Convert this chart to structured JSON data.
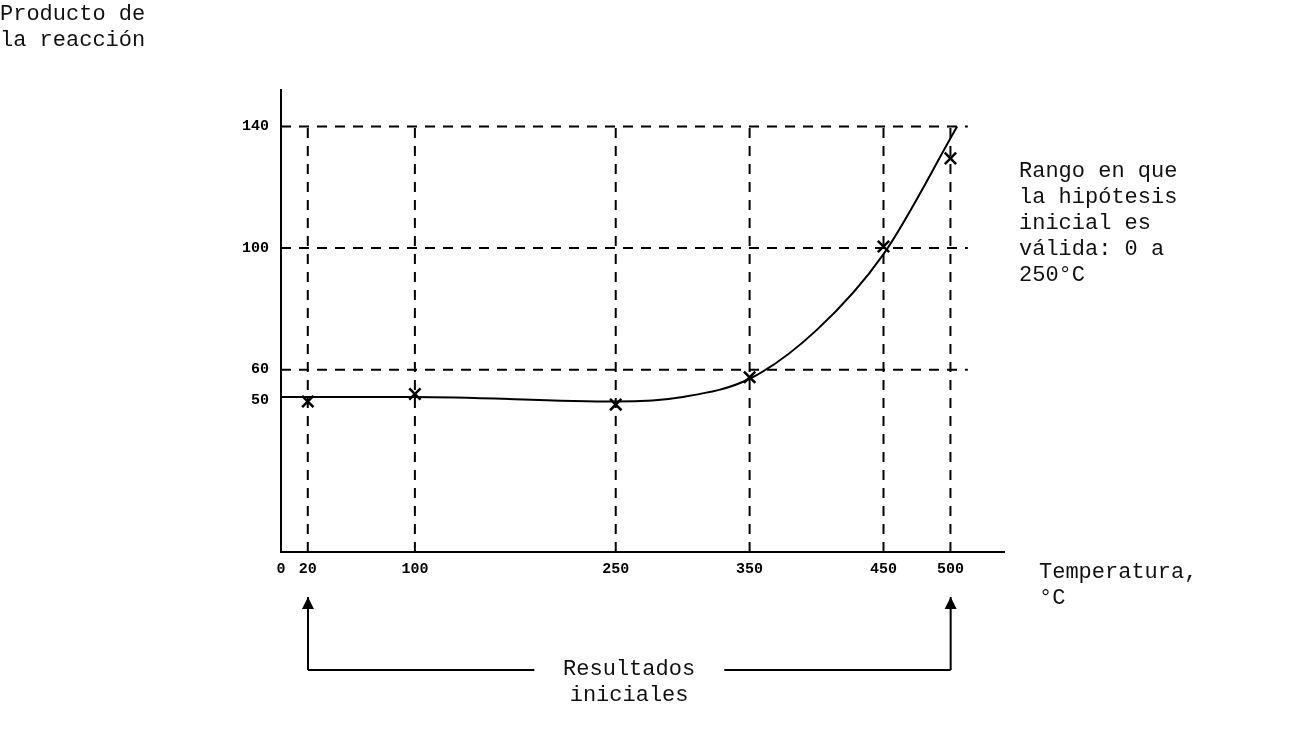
{
  "chart_data": {
    "type": "line",
    "ylabel": "Producto de la reacción",
    "xlabel": "Temperatura, °C",
    "xlim": [
      0,
      540
    ],
    "xticks": [
      0,
      20,
      100,
      250,
      350,
      450,
      500
    ],
    "ylim": [
      0,
      152
    ],
    "yticks": [
      50,
      60,
      100,
      140
    ],
    "grid": false,
    "legend": false,
    "marker": "cross",
    "series": [
      {
        "type": "scatter",
        "color": "#000000",
        "x": [
          20,
          100,
          250,
          350,
          450,
          500
        ],
        "values": [
          49.5,
          52,
          48.5,
          57.5,
          100.5,
          129.5
        ]
      },
      {
        "color": "#000000",
        "marker": "none",
        "x": [
          0,
          100,
          250,
          300,
          350,
          400,
          450,
          505
        ],
        "values": [
          51,
          51,
          49.5,
          51,
          57,
          73,
          98,
          140
        ]
      }
    ],
    "ref_lines": [
      {
        "axis": "y",
        "value": 60,
        "line_style": "dashed"
      },
      {
        "axis": "y",
        "value": 100,
        "line_style": "dashed"
      },
      {
        "axis": "y",
        "value": 140,
        "line_style": "dashed"
      },
      {
        "axis": "x",
        "value": 20,
        "line_style": "dashed"
      },
      {
        "axis": "x",
        "value": 100,
        "line_style": "dashed"
      },
      {
        "axis": "x",
        "value": 250,
        "line_style": "dashed"
      },
      {
        "axis": "x",
        "value": 350,
        "line_style": "dashed"
      },
      {
        "axis": "x",
        "value": 450,
        "line_style": "dashed"
      },
      {
        "axis": "x",
        "value": 500,
        "line_style": "dashed"
      }
    ],
    "annotations": [
      "Rango en que la hipótesis inicial es válida: 0 a 250°C",
      "Resultados iniciales"
    ]
  }
}
